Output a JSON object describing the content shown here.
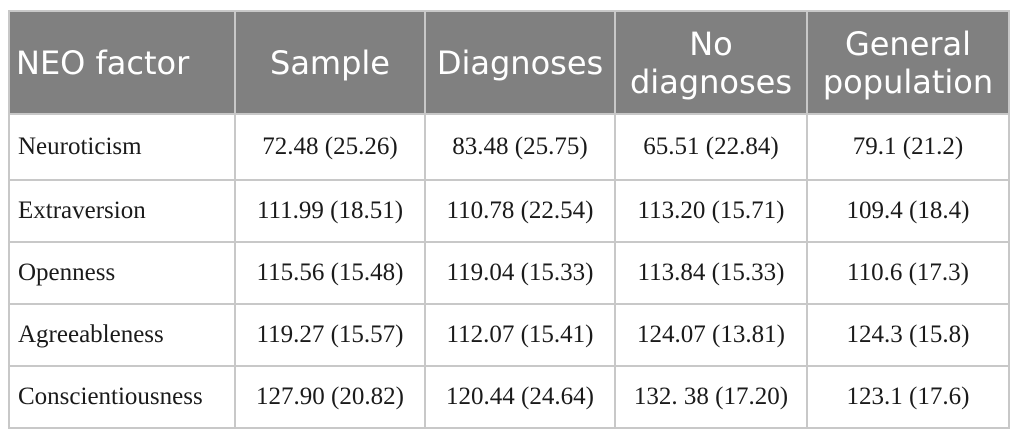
{
  "table": {
    "headers": [
      "NEO factor",
      "Sample",
      "Diagnoses",
      "No diagnoses",
      "General population"
    ],
    "rows": [
      [
        "Neuroticism",
        "72.48 (25.26)",
        "83.48 (25.75)",
        "65.51 (22.84)",
        "79.1 (21.2)"
      ],
      [
        "Extraversion",
        "111.99 (18.51)",
        "110.78 (22.54)",
        "113.20 (15.71)",
        "109.4 (18.4)"
      ],
      [
        "Openness",
        "115.56 (15.48)",
        "119.04 (15.33)",
        "113.84 (15.33)",
        "110.6 (17.3)"
      ],
      [
        "Agreeableness",
        "119.27 (15.57)",
        "112.07 (15.41)",
        "124.07 (13.81)",
        "124.3 (15.8)"
      ],
      [
        "Conscientiousness",
        "127.90 (20.82)",
        "120.44 (24.64)",
        "132. 38 (17.20)",
        "123.1 (17.6)"
      ]
    ]
  }
}
